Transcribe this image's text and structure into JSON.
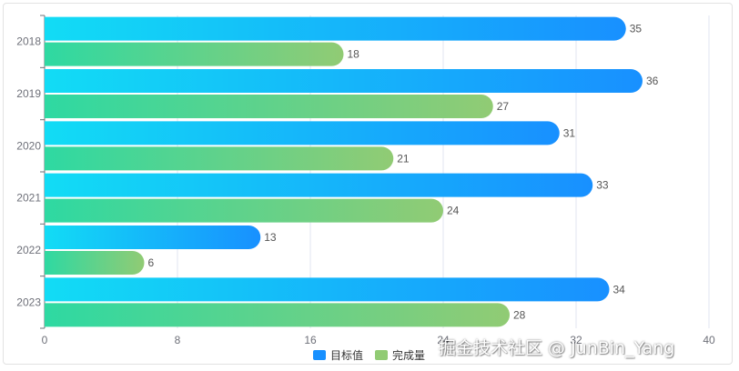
{
  "chart_data": {
    "type": "bar",
    "orientation": "horizontal",
    "categories": [
      "2018",
      "2019",
      "2020",
      "2021",
      "2022",
      "2023"
    ],
    "series": [
      {
        "name": "目标值",
        "values": [
          35,
          36,
          31,
          33,
          13,
          34
        ]
      },
      {
        "name": "完成量",
        "values": [
          18,
          27,
          21,
          24,
          6,
          28
        ]
      }
    ],
    "xlim": [
      0,
      40
    ],
    "xticks": [
      0,
      8,
      16,
      24,
      32,
      40
    ],
    "grid": true,
    "legend": "bottom-center",
    "colors": {
      "target_start": "#12dcf5",
      "target_end": "#1890ff",
      "done_start": "#2ed9a2",
      "done_end": "#91cb74"
    }
  },
  "watermark": "掘金技术社区 @ JunBin_Yang"
}
